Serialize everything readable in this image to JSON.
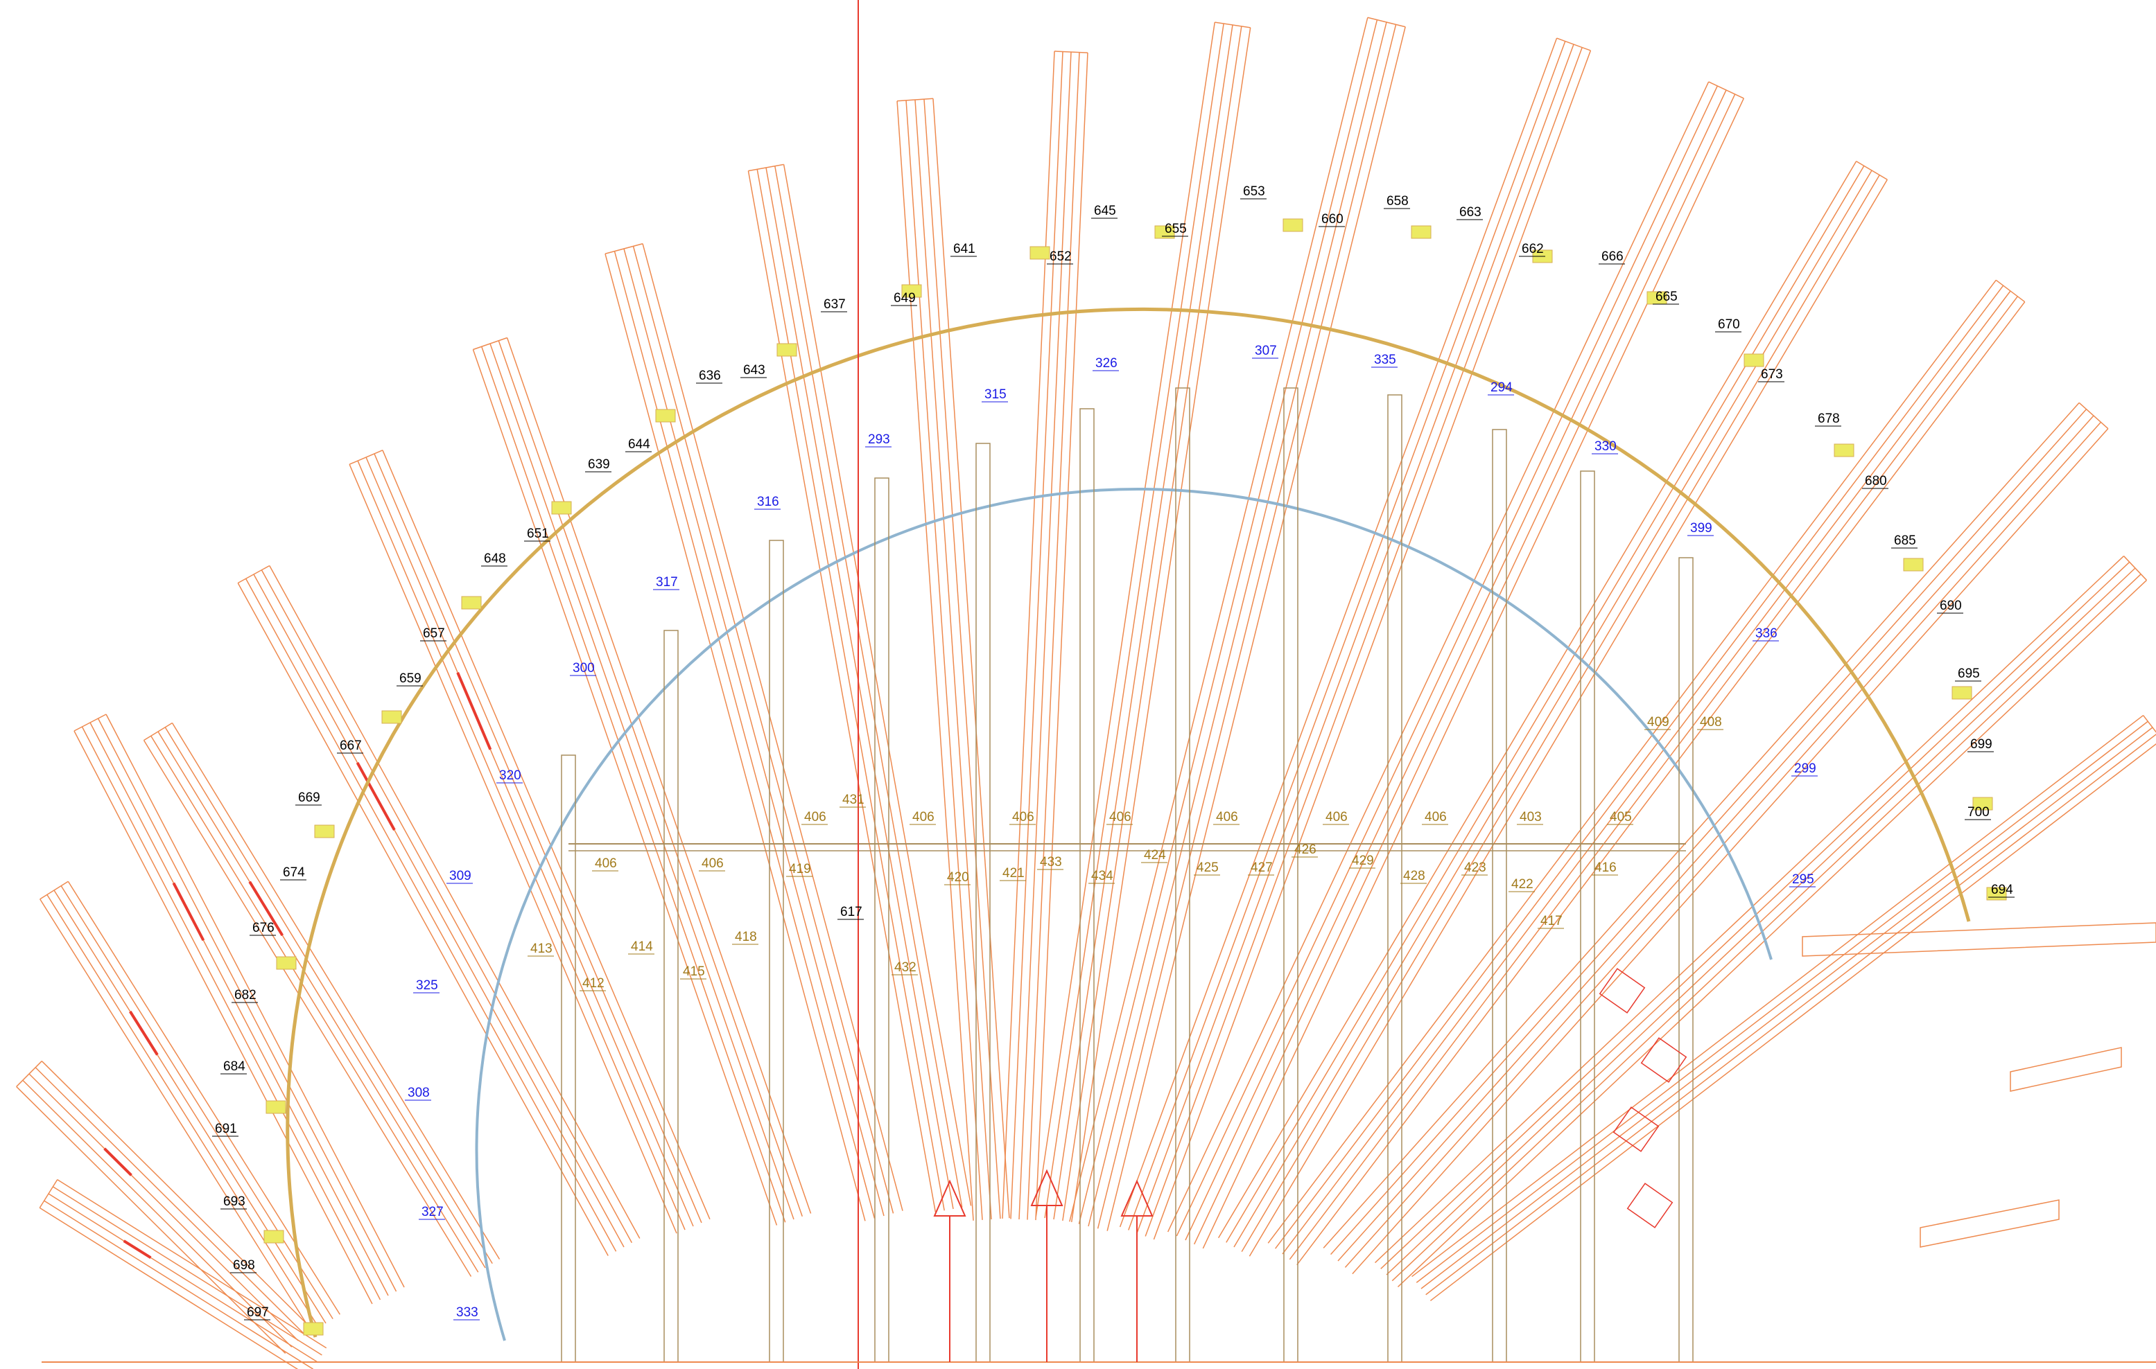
{
  "drawing": {
    "colors": {
      "beam": "#ee8a4f",
      "beam_highlight": "#e83a2e",
      "outer_ring": "#d6ad54",
      "inner_ring": "#8fb4cf",
      "column": "#a98e5e",
      "connector_fill": "#ecea63",
      "guide_line": "#e83a2e",
      "label_black": "#000000",
      "label_blue": "#1a1ae6",
      "label_tan": "#a27b1c"
    },
    "labels_black": [
      "617",
      "637",
      "639",
      "641",
      "643",
      "644",
      "645",
      "648",
      "649",
      "651",
      "652",
      "653",
      "655",
      "657",
      "658",
      "659",
      "660",
      "662",
      "663",
      "665",
      "666",
      "667",
      "669",
      "670",
      "673",
      "674",
      "676",
      "678",
      "680",
      "682",
      "684",
      "685",
      "690",
      "691",
      "693",
      "694",
      "695",
      "697",
      "698",
      "699",
      "700",
      "636"
    ],
    "labels_blue": [
      "293",
      "294",
      "295",
      "299",
      "300",
      "307",
      "308",
      "309",
      "315",
      "316",
      "317",
      "320",
      "325",
      "326",
      "327",
      "330",
      "333",
      "335",
      "336",
      "399"
    ],
    "labels_tan": [
      "403",
      "405",
      "406",
      "406",
      "406",
      "406",
      "406",
      "406",
      "406",
      "406",
      "406",
      "408",
      "409",
      "412",
      "413",
      "414",
      "415",
      "416",
      "417",
      "418",
      "419",
      "420",
      "421",
      "422",
      "423",
      "424",
      "425",
      "426",
      "427",
      "428",
      "429",
      "431",
      "432",
      "433",
      "434"
    ]
  }
}
